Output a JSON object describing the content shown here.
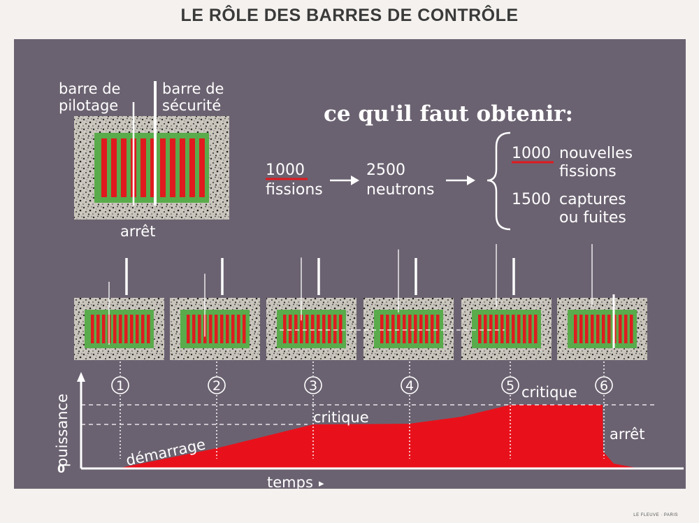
{
  "title": "LE RÔLE DES BARRES DE CONTRÔLE",
  "publisher": "LE FLEUVE · PARIS",
  "colors": {
    "background": "#6b6271",
    "moderator": "#5aab4b",
    "fuel": "#e01a1f",
    "power_curve": "#e8111b",
    "text": "#ffffff",
    "speckle_base": "#c9c5bc"
  },
  "top_diagram": {
    "rod1_label_line1": "barre de",
    "rod1_label_line2": "pilotage",
    "rod2_label_line1": "barre de",
    "rod2_label_line2": "sécurité",
    "state_label": "arrêt"
  },
  "objective": {
    "heading": "ce qu'il faut obtenir:",
    "fissions_value": "1000",
    "fissions_label": "fissions",
    "neutrons_value": "2500",
    "neutrons_label": "neutrons",
    "new_fissions_value": "1000",
    "new_fissions_line1": "nouvelles",
    "new_fissions_line2": "fissions",
    "captures_value": "1500",
    "captures_line1": "captures",
    "captures_line2": "ou fuites"
  },
  "stages": [
    {
      "number": "1",
      "pilot_rod_insertion": 1.0,
      "safety_rod_insertion": 0.0
    },
    {
      "number": "2",
      "pilot_rod_insertion": 0.85,
      "safety_rod_insertion": 0.0
    },
    {
      "number": "3",
      "pilot_rod_insertion": 0.55,
      "safety_rod_insertion": 0.0
    },
    {
      "number": "4",
      "pilot_rod_insertion": 0.4,
      "safety_rod_insertion": 0.0
    },
    {
      "number": "5",
      "pilot_rod_insertion": 0.3,
      "safety_rod_insertion": 0.0
    },
    {
      "number": "6",
      "pilot_rod_insertion": 0.3,
      "safety_rod_insertion": 1.0
    }
  ],
  "graph": {
    "y_label": "puissance",
    "y_zero": "0",
    "x_label": "temps",
    "x_arrow": "▸",
    "phase_startup": "démarrage",
    "critical_low": "critique",
    "critical_high": "critique",
    "shutdown": "arrêt"
  }
}
